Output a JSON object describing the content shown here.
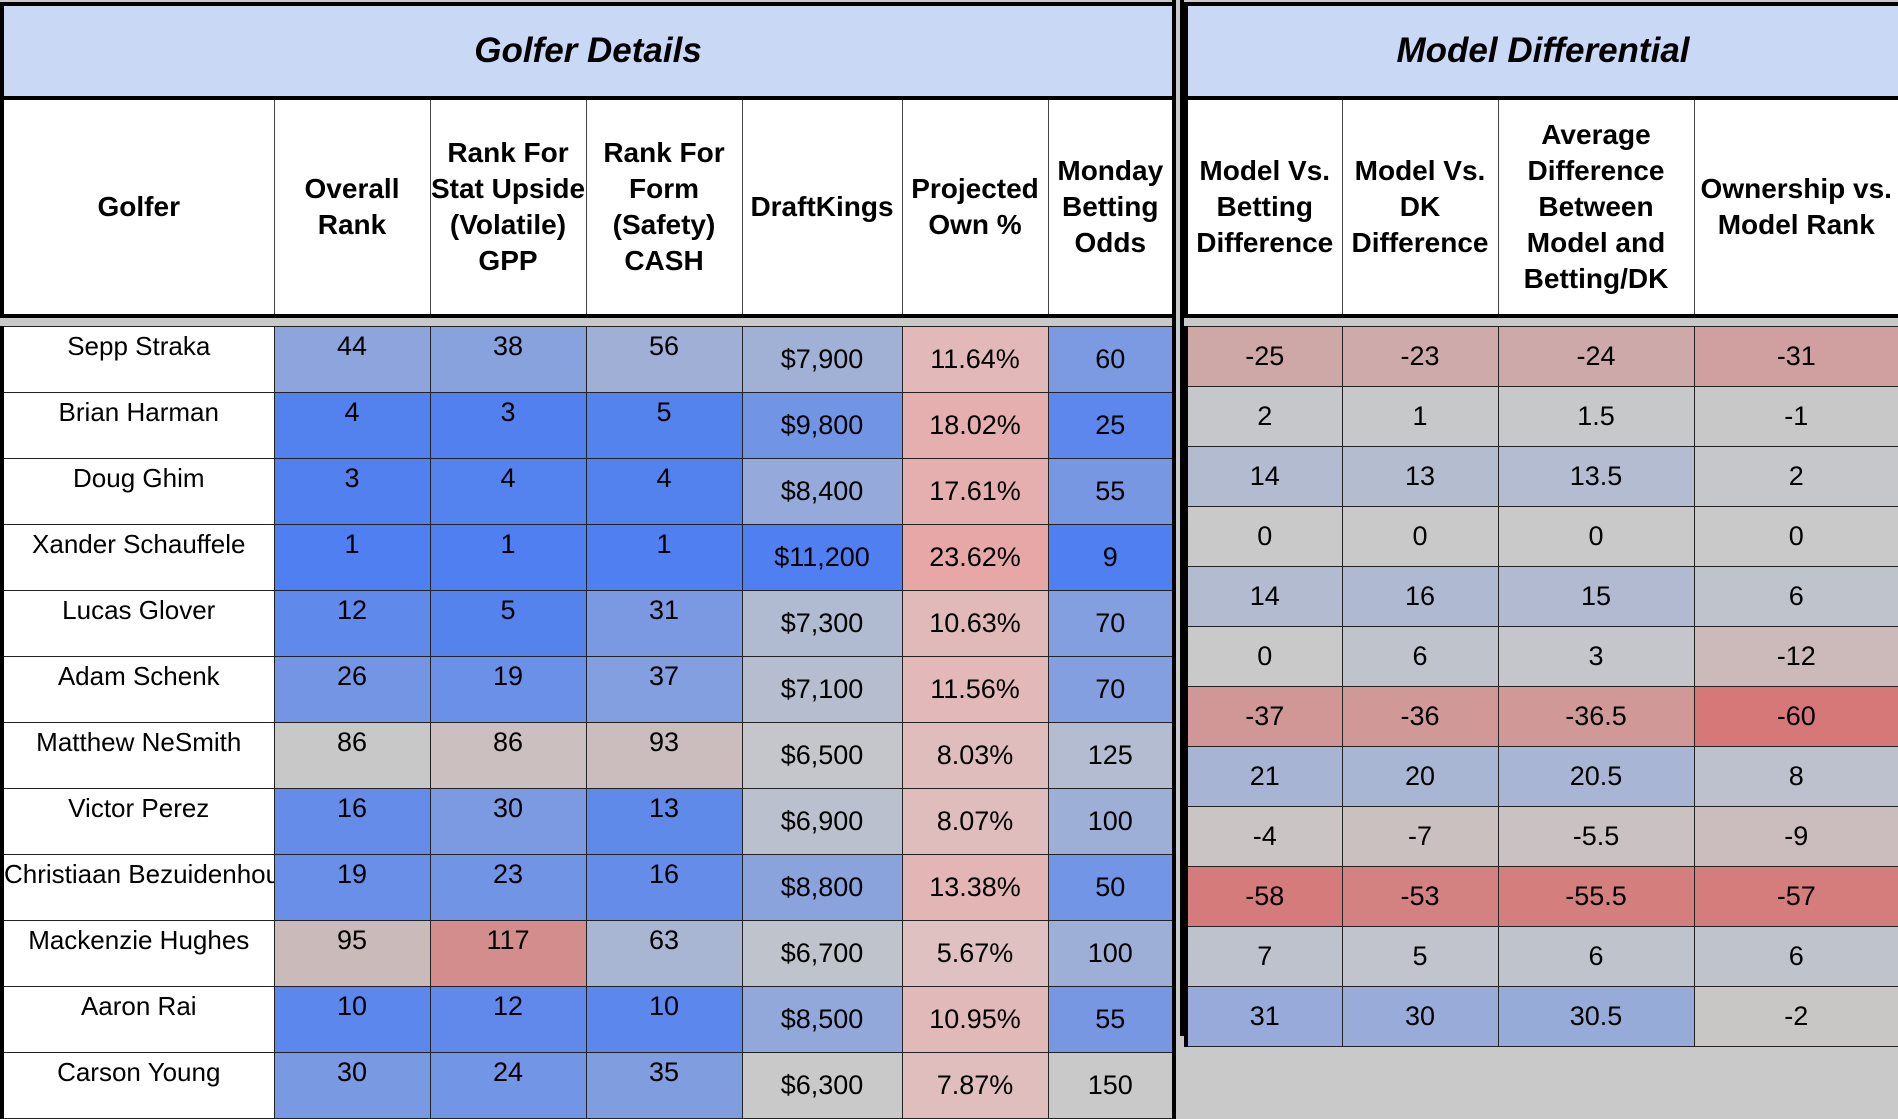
{
  "sections": {
    "left_title": "Golfer Details",
    "right_title": "Model Differential"
  },
  "left_headers": [
    "Golfer",
    "Overall Rank",
    "Rank For Stat Upside (Volatile) GPP",
    "Rank For Form (Safety) CASH",
    "DraftKings",
    "Projected Own %",
    "Monday Betting Odds"
  ],
  "right_headers": [
    "Model Vs. Betting Difference",
    "Model Vs. DK Difference",
    "Average Difference Between Model and Betting/DK",
    "Ownership vs. Model Rank"
  ],
  "rows": [
    {
      "golfer": "Sepp Straka",
      "overall": "44",
      "gpp": "38",
      "cash": "56",
      "dk": "$7,900",
      "own": "11.64%",
      "odds": "60",
      "mb": "-25",
      "mdk": "-23",
      "avg": "-24",
      "ovm": "-31"
    },
    {
      "golfer": "Brian Harman",
      "overall": "4",
      "gpp": "3",
      "cash": "5",
      "dk": "$9,800",
      "own": "18.02%",
      "odds": "25",
      "mb": "2",
      "mdk": "1",
      "avg": "1.5",
      "ovm": "-1"
    },
    {
      "golfer": "Doug Ghim",
      "overall": "3",
      "gpp": "4",
      "cash": "4",
      "dk": "$8,400",
      "own": "17.61%",
      "odds": "55",
      "mb": "14",
      "mdk": "13",
      "avg": "13.5",
      "ovm": "2"
    },
    {
      "golfer": "Xander Schauffele",
      "overall": "1",
      "gpp": "1",
      "cash": "1",
      "dk": "$11,200",
      "own": "23.62%",
      "odds": "9",
      "mb": "0",
      "mdk": "0",
      "avg": "0",
      "ovm": "0"
    },
    {
      "golfer": "Lucas Glover",
      "overall": "12",
      "gpp": "5",
      "cash": "31",
      "dk": "$7,300",
      "own": "10.63%",
      "odds": "70",
      "mb": "14",
      "mdk": "16",
      "avg": "15",
      "ovm": "6"
    },
    {
      "golfer": "Adam Schenk",
      "overall": "26",
      "gpp": "19",
      "cash": "37",
      "dk": "$7,100",
      "own": "11.56%",
      "odds": "70",
      "mb": "0",
      "mdk": "6",
      "avg": "3",
      "ovm": "-12"
    },
    {
      "golfer": "Matthew NeSmith",
      "overall": "86",
      "gpp": "86",
      "cash": "93",
      "dk": "$6,500",
      "own": "8.03%",
      "odds": "125",
      "mb": "-37",
      "mdk": "-36",
      "avg": "-36.5",
      "ovm": "-60"
    },
    {
      "golfer": "Victor Perez",
      "overall": "16",
      "gpp": "30",
      "cash": "13",
      "dk": "$6,900",
      "own": "8.07%",
      "odds": "100",
      "mb": "21",
      "mdk": "20",
      "avg": "20.5",
      "ovm": "8"
    },
    {
      "golfer": "Christiaan Bezuidenhout",
      "overall": "19",
      "gpp": "23",
      "cash": "16",
      "dk": "$8,800",
      "own": "13.38%",
      "odds": "50",
      "mb": "-4",
      "mdk": "-7",
      "avg": "-5.5",
      "ovm": "-9"
    },
    {
      "golfer": "Mackenzie Hughes",
      "overall": "95",
      "gpp": "117",
      "cash": "63",
      "dk": "$6,700",
      "own": "5.67%",
      "odds": "100",
      "mb": "-58",
      "mdk": "-53",
      "avg": "-55.5",
      "ovm": "-57"
    },
    {
      "golfer": "Aaron Rai",
      "overall": "10",
      "gpp": "12",
      "cash": "10",
      "dk": "$8,500",
      "own": "10.95%",
      "odds": "55",
      "mb": "7",
      "mdk": "5",
      "avg": "6",
      "ovm": "6"
    },
    {
      "golfer": "Carson Young",
      "overall": "30",
      "gpp": "24",
      "cash": "35",
      "dk": "$6,300",
      "own": "7.87%",
      "odds": "150",
      "mb": "31",
      "mdk": "30",
      "avg": "30.5",
      "ovm": "-2"
    }
  ],
  "colors": {
    "header_fill": "#c9d8f5",
    "strong_blue": "#4f7ff0",
    "neutral_grey": "#c9c9c9",
    "strong_red": "#d67878",
    "own_pink": "#e8a6a6"
  }
}
